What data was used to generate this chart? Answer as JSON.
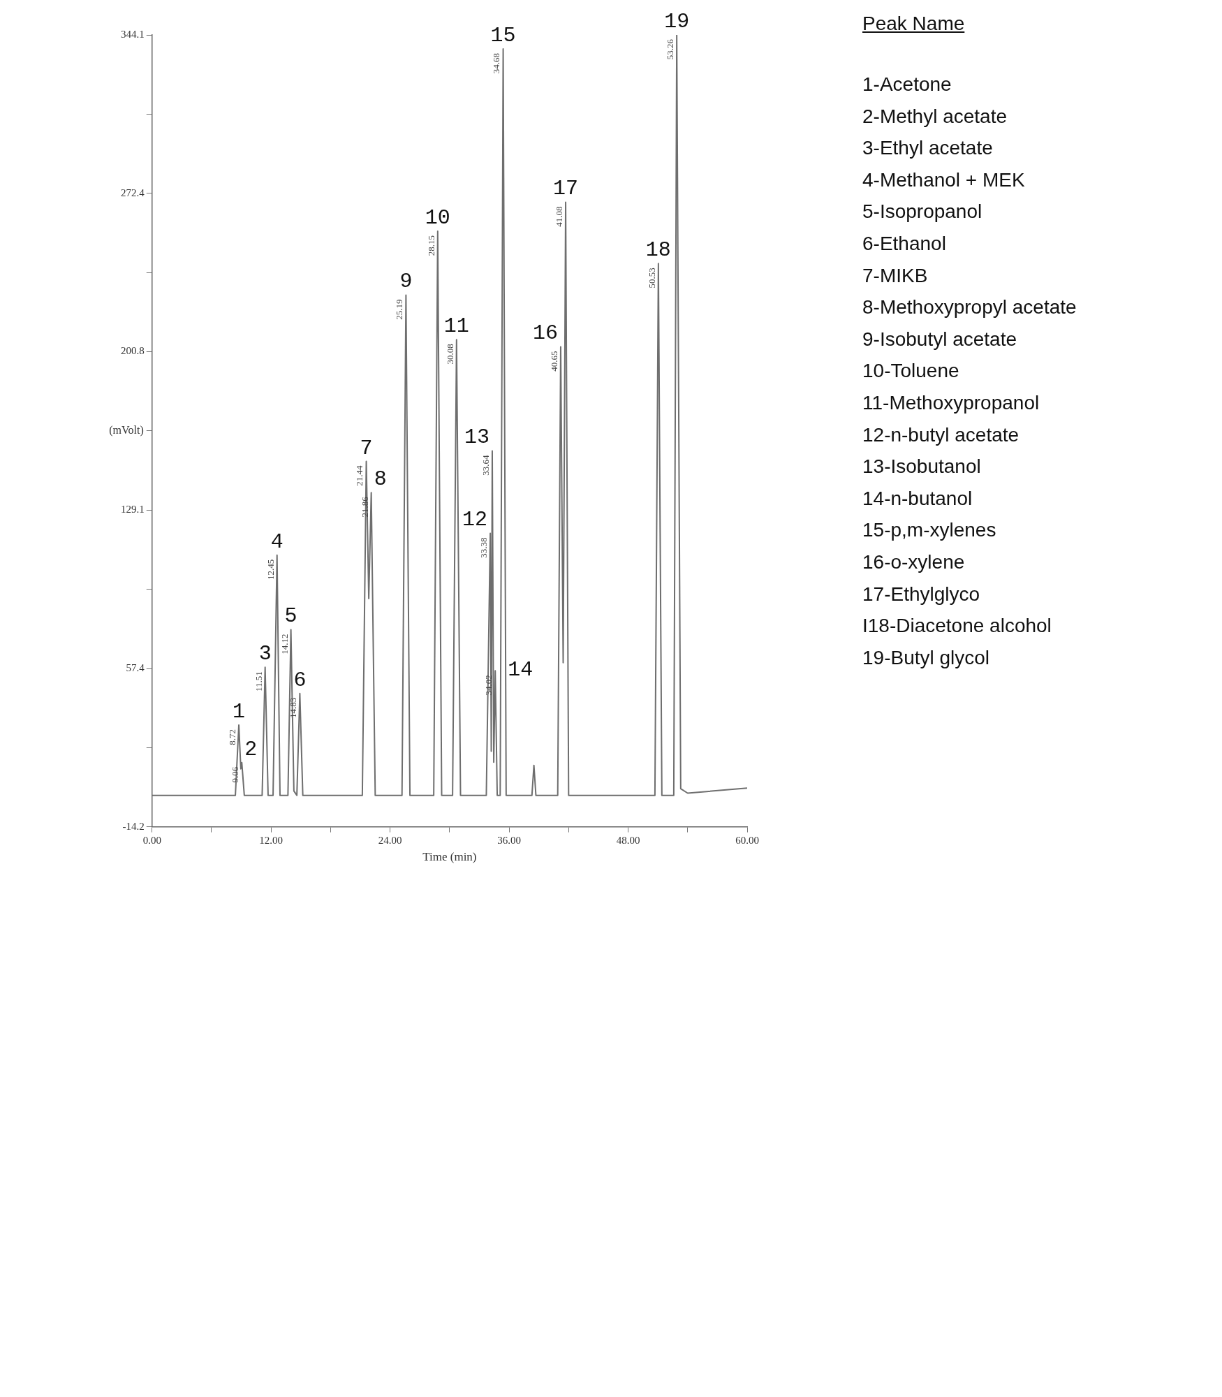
{
  "chart_data": [
    {
      "type": "line",
      "xlabel": "Time (min)",
      "ylabel": "(mVolt)",
      "xlim": [
        0,
        60
      ],
      "ylim": [
        -14.2,
        344.1
      ],
      "xticks": [
        {
          "value": 0,
          "label": "0.00"
        },
        {
          "value": 6,
          "label": null
        },
        {
          "value": 12,
          "label": "12.00"
        },
        {
          "value": 18,
          "label": null
        },
        {
          "value": 24,
          "label": "24.00"
        },
        {
          "value": 30,
          "label": null
        },
        {
          "value": 36,
          "label": "36.00"
        },
        {
          "value": 42,
          "label": null
        },
        {
          "value": 48,
          "label": "48.00"
        },
        {
          "value": 54,
          "label": null
        },
        {
          "value": 60,
          "label": "60.00"
        }
      ],
      "yticks": [
        -14.2,
        {
          "value": 21.6,
          "label": null
        },
        57.4,
        {
          "value": 93.3,
          "label": null
        },
        129.1,
        {
          "value": 165.0,
          "label": null
        },
        200.8,
        {
          "value": 236.6,
          "label": null
        },
        272.4,
        {
          "value": 308.3,
          "label": null
        },
        344.1
      ],
      "series": [
        {
          "color": "#6e6e6e",
          "x": [
            0,
            7.5,
            8.4,
            8.75,
            8.95,
            9.05,
            9.3,
            11.1,
            11.4,
            11.7,
            12.2,
            12.6,
            12.9,
            13.7,
            14.0,
            14.3,
            14.6,
            14.9,
            15.2,
            21.2,
            21.6,
            21.85,
            22.1,
            22.5,
            25.2,
            25.6,
            26.0,
            28.4,
            28.8,
            29.2,
            30.3,
            30.7,
            31.1,
            33.7,
            34.1,
            34.2,
            34.3,
            34.45,
            34.6,
            34.8,
            35.1,
            35.4,
            35.7,
            38.3,
            38.5,
            38.7,
            40.9,
            41.2,
            41.45,
            41.7,
            42.0,
            50.7,
            51.05,
            51.4,
            52.6,
            52.9,
            53.3,
            54,
            60
          ],
          "values": [
            0,
            0,
            0,
            31.8,
            12,
            14.8,
            0,
            0,
            58.0,
            0,
            0,
            108.7,
            0,
            0,
            75,
            2,
            0,
            46.1,
            0,
            0,
            151.1,
            89,
            137,
            0,
            0,
            226.4,
            0,
            0,
            255.3,
            0,
            0,
            206.2,
            0,
            0,
            118.6,
            20,
            155.9,
            15,
            56.4,
            0,
            0,
            337.8,
            0,
            0,
            13.6,
            0,
            0,
            203,
            60,
            268.4,
            0,
            0,
            240.7,
            0,
            0,
            344.1,
            3,
            1,
            3.3
          ]
        }
      ],
      "annotations": [
        {
          "text": "1",
          "x": 8.75,
          "y": 31.8
        },
        {
          "text": "8.72",
          "x": 8.75,
          "y": 31.8
        },
        {
          "text": "2",
          "x": 9.05,
          "y": 14.8
        },
        {
          "text": "9.06",
          "x": 9.05,
          "y": 14.8
        },
        {
          "text": "3",
          "x": 11.4,
          "y": 58.0
        },
        {
          "text": "11.51",
          "x": 11.4,
          "y": 58.0
        },
        {
          "text": "4",
          "x": 12.6,
          "y": 108.7
        },
        {
          "text": "12.45",
          "x": 12.6,
          "y": 108.7
        },
        {
          "text": "5",
          "x": 14.0,
          "y": 75
        },
        {
          "text": "14.12",
          "x": 14.0,
          "y": 75
        },
        {
          "text": "6",
          "x": 14.9,
          "y": 46.1
        },
        {
          "text": "14.83",
          "x": 14.9,
          "y": 46.1
        },
        {
          "text": "7",
          "x": 21.6,
          "y": 151.1
        },
        {
          "text": "21.44",
          "x": 21.6,
          "y": 151.1
        },
        {
          "text": "8",
          "x": 22.1,
          "y": 137
        },
        {
          "text": "21.86",
          "x": 22.1,
          "y": 137
        },
        {
          "text": "9",
          "x": 25.6,
          "y": 226.4
        },
        {
          "text": "25.19",
          "x": 25.6,
          "y": 226.4
        },
        {
          "text": "10",
          "x": 28.8,
          "y": 255.3
        },
        {
          "text": "28.15",
          "x": 28.8,
          "y": 255.3
        },
        {
          "text": "11",
          "x": 30.7,
          "y": 206.2
        },
        {
          "text": "30.08",
          "x": 30.7,
          "y": 206.2
        },
        {
          "text": "12",
          "x": 34.1,
          "y": 118.6
        },
        {
          "text": "33.38",
          "x": 34.1,
          "y": 118.6
        },
        {
          "text": "13",
          "x": 34.3,
          "y": 155.9
        },
        {
          "text": "33.64",
          "x": 34.3,
          "y": 155.9
        },
        {
          "text": "14",
          "x": 34.6,
          "y": 56.4
        },
        {
          "text": "34.02",
          "x": 34.6,
          "y": 56.4
        },
        {
          "text": "15",
          "x": 35.4,
          "y": 337.8
        },
        {
          "text": "34.68",
          "x": 35.4,
          "y": 337.8
        },
        {
          "text": "16",
          "x": 41.2,
          "y": 203
        },
        {
          "text": "40.65",
          "x": 41.2,
          "y": 203
        },
        {
          "text": "17",
          "x": 41.7,
          "y": 268.4
        },
        {
          "text": "41.08",
          "x": 41.7,
          "y": 268.4
        },
        {
          "text": "18",
          "x": 51.05,
          "y": 240.7
        },
        {
          "text": "50.53",
          "x": 51.05,
          "y": 240.7
        },
        {
          "text": "19",
          "x": 52.9,
          "y": 344.1
        },
        {
          "text": "53.26",
          "x": 52.9,
          "y": 344.1
        }
      ]
    },
    {
      "type": "other",
      "title": "Peak Name",
      "annotations": [
        "1-Acetone",
        "2-Methyl acetate",
        "3-Ethyl acetate",
        "4-Methanol + MEK",
        "5-Isopropanol",
        "6-Ethanol",
        "7-MIKB",
        "8-Methoxypropyl acetate",
        "9-Isobutyl acetate",
        "10-Toluene",
        "11-Methoxypropanol",
        "12-n-butyl acetate",
        "13-Isobutanol",
        "14-n-butanol",
        "15-p,m-xylenes",
        "16-o-xylene",
        "17-Ethylglyco",
        "I18-Diacetone alcohol",
        "19-Butyl glycol"
      ]
    }
  ]
}
